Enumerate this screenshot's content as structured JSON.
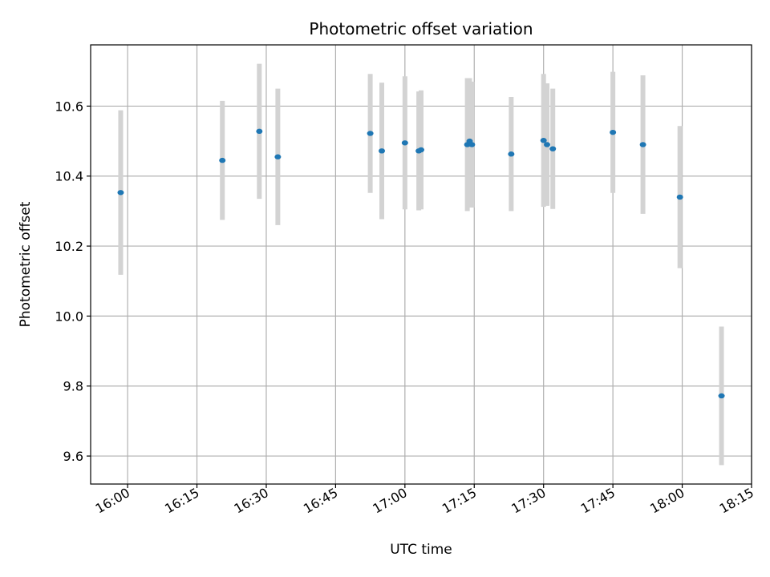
{
  "chart_data": {
    "type": "scatter",
    "title": "Photometric offset variation",
    "xlabel": "UTC time",
    "ylabel": "Photometric offset",
    "grid": true,
    "x_tick_labels": [
      "16:00",
      "16:15",
      "16:30",
      "16:45",
      "17:00",
      "17:15",
      "17:30",
      "17:45",
      "18:00",
      "18:15"
    ],
    "y_tick_labels": [
      "9.6",
      "9.8",
      "10.0",
      "10.2",
      "10.4",
      "10.6"
    ],
    "xlim": [
      "15:52",
      "18:15"
    ],
    "ylim": [
      9.52,
      10.775
    ],
    "colors": {
      "point": "#1f77b4",
      "errorbar": "#d3d3d3",
      "grid": "#b0b0b0"
    },
    "series": [
      {
        "points": [
          {
            "x": "15:58:30",
            "y": 10.353,
            "err": 0.235
          },
          {
            "x": "16:20:30",
            "y": 10.445,
            "err": 0.17
          },
          {
            "x": "16:28:30",
            "y": 10.528,
            "err": 0.193
          },
          {
            "x": "16:32:30",
            "y": 10.455,
            "err": 0.195
          },
          {
            "x": "16:52:30",
            "y": 10.522,
            "err": 0.17
          },
          {
            "x": "16:55:00",
            "y": 10.472,
            "err": 0.195
          },
          {
            "x": "17:00:00",
            "y": 10.495,
            "err": 0.19
          },
          {
            "x": "17:03:00",
            "y": 10.472,
            "err": 0.17
          },
          {
            "x": "17:03:30",
            "y": 10.475,
            "err": 0.17
          },
          {
            "x": "17:13:30",
            "y": 10.49,
            "err": 0.19
          },
          {
            "x": "17:14:00",
            "y": 10.5,
            "err": 0.18
          },
          {
            "x": "17:14:30",
            "y": 10.49,
            "err": 0.18
          },
          {
            "x": "17:23:00",
            "y": 10.463,
            "err": 0.163
          },
          {
            "x": "17:30:00",
            "y": 10.502,
            "err": 0.19
          },
          {
            "x": "17:30:45",
            "y": 10.49,
            "err": 0.175
          },
          {
            "x": "17:32:00",
            "y": 10.478,
            "err": 0.172
          },
          {
            "x": "17:45:00",
            "y": 10.525,
            "err": 0.173
          },
          {
            "x": "17:51:30",
            "y": 10.49,
            "err": 0.198
          },
          {
            "x": "17:59:30",
            "y": 10.34,
            "err": 0.203
          },
          {
            "x": "18:08:30",
            "y": 9.772,
            "err": 0.198
          }
        ]
      }
    ]
  }
}
